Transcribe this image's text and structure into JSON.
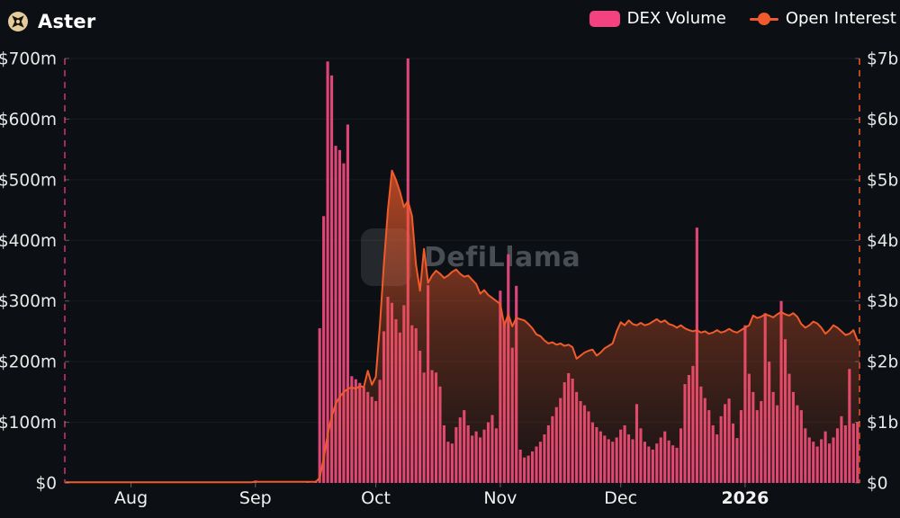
{
  "header": {
    "title": "Aster"
  },
  "legend": {
    "items": [
      {
        "label": "DEX Volume",
        "type": "bar",
        "color": "#f2427f"
      },
      {
        "label": "Open Interest",
        "type": "line",
        "color": "#f15b2b"
      }
    ]
  },
  "watermark": {
    "text": "DefiLlama"
  },
  "colors": {
    "background": "#0c1014",
    "bar": "#df4677",
    "line": "#f15b2b",
    "left_axis_dashed_line": "#a12c5c",
    "right_axis_dashed_line": "#bb4722",
    "axis_label": "#e9e9e9",
    "coin_icon_base": "#e3cc9c"
  },
  "chart_data": {
    "type": "bar+line combo, daily",
    "title": "Aster — DEX Volume vs Open Interest",
    "start_date": "2025-07-16",
    "end_date": "2026-01-29",
    "x_ticks": [
      {
        "label": "Aug",
        "day_index": 16,
        "bold": false
      },
      {
        "label": "Sep",
        "day_index": 47,
        "bold": false
      },
      {
        "label": "Oct",
        "day_index": 77,
        "bold": false
      },
      {
        "label": "Nov",
        "day_index": 108,
        "bold": false
      },
      {
        "label": "Dec",
        "day_index": 138,
        "bold": false
      },
      {
        "label": "2026",
        "day_index": 169,
        "bold": true
      }
    ],
    "left_axis": {
      "unit": "$m",
      "max": 700,
      "step": 100,
      "tick_labels": [
        "$0",
        "$100m",
        "$200m",
        "$300m",
        "$400m",
        "$500m",
        "$600m",
        "$700m"
      ]
    },
    "right_axis": {
      "unit": "$b",
      "max": 7,
      "step": 1,
      "tick_labels": [
        "$0",
        "$1b",
        "$2b",
        "$3b",
        "$4b",
        "$5b",
        "$6b",
        "$7b"
      ]
    },
    "series": [
      {
        "name": "DEX Volume",
        "type": "bar",
        "axis": "left",
        "unit": "$m",
        "color": "#df4677",
        "values": [
          0,
          0,
          0,
          0,
          0,
          0,
          0,
          0,
          0,
          0,
          0,
          0,
          0,
          0,
          0,
          0,
          0,
          0,
          0,
          0,
          0,
          0,
          0,
          0,
          0,
          0,
          0,
          0,
          0,
          0,
          0,
          0,
          0,
          0,
          0,
          0,
          0,
          0,
          0,
          0,
          0,
          0,
          0,
          0,
          0,
          0,
          0,
          4,
          0,
          0,
          0,
          0,
          0,
          0,
          0,
          0,
          0,
          0,
          0,
          0,
          3,
          0,
          2,
          255,
          440,
          695,
          672,
          556,
          549,
          527,
          591,
          176,
          171,
          165,
          158,
          150,
          142,
          135,
          170,
          250,
          307,
          297,
          270,
          248,
          293,
          700,
          260,
          255,
          218,
          182,
          326,
          186,
          182,
          159,
          95,
          68,
          65,
          92,
          108,
          120,
          95,
          78,
          85,
          75,
          88,
          100,
          112,
          90,
          317,
          265,
          377,
          223,
          325,
          55,
          42,
          45,
          52,
          60,
          68,
          80,
          95,
          110,
          125,
          140,
          166,
          181,
          172,
          150,
          135,
          128,
          118,
          100,
          92,
          85,
          78,
          72,
          68,
          75,
          88,
          95,
          80,
          72,
          130,
          90,
          68,
          60,
          55,
          65,
          75,
          85,
          70,
          62,
          58,
          90,
          163,
          178,
          193,
          421,
          159,
          140,
          120,
          95,
          80,
          110,
          130,
          139,
          98,
          74,
          120,
          260,
          180,
          150,
          120,
          135,
          280,
          200,
          150,
          128,
          300,
          237,
          180,
          150,
          128,
          120,
          90,
          75,
          68,
          60,
          72,
          85,
          65,
          75,
          90,
          110,
          95,
          188,
          98,
          100
        ]
      },
      {
        "name": "Open Interest",
        "type": "line",
        "axis": "right",
        "unit": "$b",
        "color": "#f15b2b",
        "values": [
          0.01,
          0.01,
          0.01,
          0.01,
          0.01,
          0.01,
          0.01,
          0.01,
          0.01,
          0.01,
          0.01,
          0.01,
          0.01,
          0.01,
          0.01,
          0.01,
          0.01,
          0.01,
          0.01,
          0.01,
          0.01,
          0.01,
          0.01,
          0.01,
          0.01,
          0.01,
          0.01,
          0.01,
          0.01,
          0.01,
          0.01,
          0.01,
          0.01,
          0.01,
          0.01,
          0.01,
          0.01,
          0.01,
          0.01,
          0.01,
          0.01,
          0.01,
          0.01,
          0.01,
          0.01,
          0.01,
          0.01,
          0.02,
          0.02,
          0.02,
          0.02,
          0.02,
          0.02,
          0.02,
          0.02,
          0.02,
          0.02,
          0.02,
          0.02,
          0.02,
          0.02,
          0.02,
          0.02,
          0.08,
          0.4,
          0.8,
          1.1,
          1.3,
          1.42,
          1.5,
          1.55,
          1.58,
          1.55,
          1.6,
          1.58,
          1.85,
          1.62,
          1.75,
          2.6,
          3.6,
          4.5,
          5.15,
          5.0,
          4.8,
          4.55,
          4.65,
          4.4,
          3.6,
          3.17,
          3.86,
          3.3,
          3.42,
          3.5,
          3.45,
          3.38,
          3.42,
          3.48,
          3.52,
          3.45,
          3.4,
          3.42,
          3.35,
          3.28,
          3.12,
          3.18,
          3.1,
          3.05,
          3.0,
          2.95,
          2.6,
          2.78,
          2.58,
          2.72,
          2.7,
          2.68,
          2.62,
          2.55,
          2.45,
          2.42,
          2.35,
          2.3,
          2.32,
          2.28,
          2.3,
          2.26,
          2.28,
          2.24,
          2.05,
          2.1,
          2.15,
          2.18,
          2.2,
          2.1,
          2.15,
          2.22,
          2.26,
          2.3,
          2.5,
          2.65,
          2.6,
          2.68,
          2.62,
          2.6,
          2.64,
          2.6,
          2.62,
          2.66,
          2.7,
          2.65,
          2.68,
          2.62,
          2.6,
          2.56,
          2.6,
          2.55,
          2.52,
          2.5,
          2.52,
          2.48,
          2.5,
          2.46,
          2.48,
          2.52,
          2.48,
          2.5,
          2.54,
          2.5,
          2.48,
          2.52,
          2.56,
          2.6,
          2.76,
          2.72,
          2.74,
          2.78,
          2.76,
          2.73,
          2.78,
          2.82,
          2.78,
          2.76,
          2.8,
          2.74,
          2.62,
          2.56,
          2.6,
          2.66,
          2.63,
          2.56,
          2.46,
          2.52,
          2.6,
          2.56,
          2.5,
          2.44,
          2.46,
          2.52,
          2.35
        ]
      }
    ],
    "layout": {
      "grid": true,
      "legend_position": "top-right",
      "left_axis_style": "dashed crimson vertical line",
      "right_axis_style": "dashed orange vertical line"
    }
  }
}
